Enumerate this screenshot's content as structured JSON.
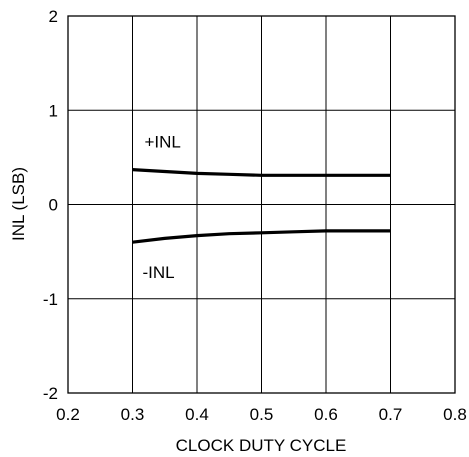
{
  "chart_data": {
    "type": "line",
    "title": "",
    "xlabel": "CLOCK DUTY CYCLE",
    "ylabel": "INL (LSB)",
    "xlim": [
      0.2,
      0.8
    ],
    "ylim": [
      -2,
      2
    ],
    "xticks": [
      "0.2",
      "0.3",
      "0.4",
      "0.5",
      "0.6",
      "0.7",
      "0.8"
    ],
    "yticks": [
      "2",
      "1",
      "0",
      "-1",
      "-2"
    ],
    "grid": true,
    "legend": "none",
    "series": [
      {
        "name": "+INL",
        "x": [
          0.3,
          0.35,
          0.4,
          0.45,
          0.5,
          0.55,
          0.6,
          0.65,
          0.7
        ],
        "y": [
          0.37,
          0.35,
          0.33,
          0.32,
          0.31,
          0.31,
          0.31,
          0.31,
          0.31
        ]
      },
      {
        "name": "-INL",
        "x": [
          0.3,
          0.35,
          0.4,
          0.45,
          0.5,
          0.55,
          0.6,
          0.65,
          0.7
        ],
        "y": [
          -0.4,
          -0.36,
          -0.33,
          -0.31,
          -0.3,
          -0.29,
          -0.28,
          -0.28,
          -0.28
        ]
      }
    ]
  }
}
